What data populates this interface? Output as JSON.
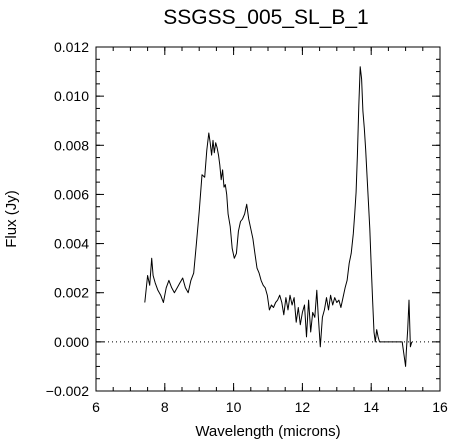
{
  "chart_data": {
    "type": "line",
    "title": "SSGSS_005_SL_B_1",
    "xlabel": "Wavelength (microns)",
    "ylabel": "Flux (Jy)",
    "xlim": [
      6,
      16
    ],
    "ylim": [
      -0.002,
      0.012
    ],
    "xticks": [
      6,
      8,
      10,
      12,
      14,
      16
    ],
    "xtick_labels": [
      "6",
      "8",
      "10",
      "12",
      "14",
      "16"
    ],
    "yticks": [
      -0.002,
      0.0,
      0.002,
      0.004,
      0.006,
      0.008,
      0.01,
      0.012
    ],
    "ytick_labels": [
      "−0.002",
      "0.000",
      "0.002",
      "0.004",
      "0.006",
      "0.008",
      "0.010",
      "0.012"
    ],
    "grid": false,
    "reference_line": {
      "y": 0.0,
      "style": "dotted"
    },
    "series": [
      {
        "x": [
          7.42,
          7.5,
          7.56,
          7.62,
          7.66,
          7.72,
          7.8,
          7.88,
          7.96,
          8.04,
          8.12,
          8.2,
          8.28,
          8.36,
          8.44,
          8.52,
          8.6,
          8.68,
          8.76,
          8.84,
          8.92,
          9.0,
          9.08,
          9.16,
          9.22,
          9.28,
          9.32,
          9.36,
          9.4,
          9.44,
          9.48,
          9.52,
          9.56,
          9.6,
          9.64,
          9.68,
          9.72,
          9.76,
          9.8,
          9.84,
          9.9,
          9.96,
          10.02,
          10.08,
          10.14,
          10.2,
          10.26,
          10.32,
          10.38,
          10.44,
          10.5,
          10.56,
          10.62,
          10.68,
          10.74,
          10.8,
          10.86,
          10.92,
          10.98,
          11.04,
          11.1,
          11.16,
          11.22,
          11.28,
          11.34,
          11.4,
          11.46,
          11.52,
          11.58,
          11.64,
          11.7,
          11.76,
          11.82,
          11.88,
          11.94,
          12.0,
          12.06,
          12.12,
          12.18,
          12.24,
          12.3,
          12.36,
          12.42,
          12.46,
          12.52,
          12.58,
          12.64,
          12.7,
          12.76,
          12.82,
          12.88,
          12.94,
          13.0,
          13.06,
          13.12,
          13.18,
          13.24,
          13.3,
          13.36,
          13.42,
          13.48,
          13.52,
          13.56,
          13.6,
          13.64,
          13.68,
          13.72,
          13.76,
          13.8,
          13.84,
          13.88,
          13.92,
          13.96,
          14.0,
          14.04,
          14.08,
          14.12,
          14.16,
          14.2,
          14.24,
          14.28,
          14.32,
          14.36,
          14.4,
          14.5,
          14.6,
          14.7,
          14.8,
          14.9,
          15.0,
          15.02,
          15.06,
          15.1,
          15.14,
          15.18
        ],
        "y": [
          0.0016,
          0.0027,
          0.0023,
          0.0034,
          0.0027,
          0.0024,
          0.0021,
          0.0019,
          0.0016,
          0.0022,
          0.0025,
          0.0022,
          0.002,
          0.0022,
          0.0024,
          0.0026,
          0.0022,
          0.002,
          0.0025,
          0.0028,
          0.004,
          0.0053,
          0.0068,
          0.0067,
          0.0078,
          0.0085,
          0.0081,
          0.0076,
          0.0082,
          0.0077,
          0.0081,
          0.0079,
          0.0076,
          0.0072,
          0.0066,
          0.007,
          0.0063,
          0.0064,
          0.006,
          0.0052,
          0.0047,
          0.0038,
          0.0034,
          0.0036,
          0.0045,
          0.0049,
          0.005,
          0.0052,
          0.0056,
          0.005,
          0.0046,
          0.0042,
          0.0036,
          0.003,
          0.0028,
          0.0025,
          0.0023,
          0.0022,
          0.0019,
          0.0013,
          0.0015,
          0.0014,
          0.0016,
          0.0017,
          0.0019,
          0.0016,
          0.0011,
          0.0018,
          0.0013,
          0.0019,
          0.0015,
          0.0018,
          0.0008,
          0.0014,
          0.0007,
          0.0012,
          0.0015,
          0.0002,
          0.0017,
          0.0004,
          0.0012,
          0.001,
          0.0021,
          0.0011,
          -0.0002,
          0.001,
          0.0013,
          0.0018,
          0.0013,
          0.0019,
          0.0015,
          0.0018,
          0.0016,
          0.0017,
          0.0014,
          0.0018,
          0.0022,
          0.0025,
          0.0032,
          0.0036,
          0.0044,
          0.0052,
          0.0061,
          0.0076,
          0.0096,
          0.0112,
          0.0107,
          0.0094,
          0.0087,
          0.0078,
          0.0067,
          0.0057,
          0.0046,
          0.0031,
          0.0017,
          0.0004,
          0.0,
          0.0005,
          0.0002,
          0.0,
          0.0,
          0.0,
          0.0,
          0.0,
          0.0,
          0.0,
          0.0,
          0.0,
          0.0,
          -0.001,
          -0.0004,
          0.0005,
          0.0017,
          -0.0002,
          0.0
        ]
      }
    ]
  }
}
